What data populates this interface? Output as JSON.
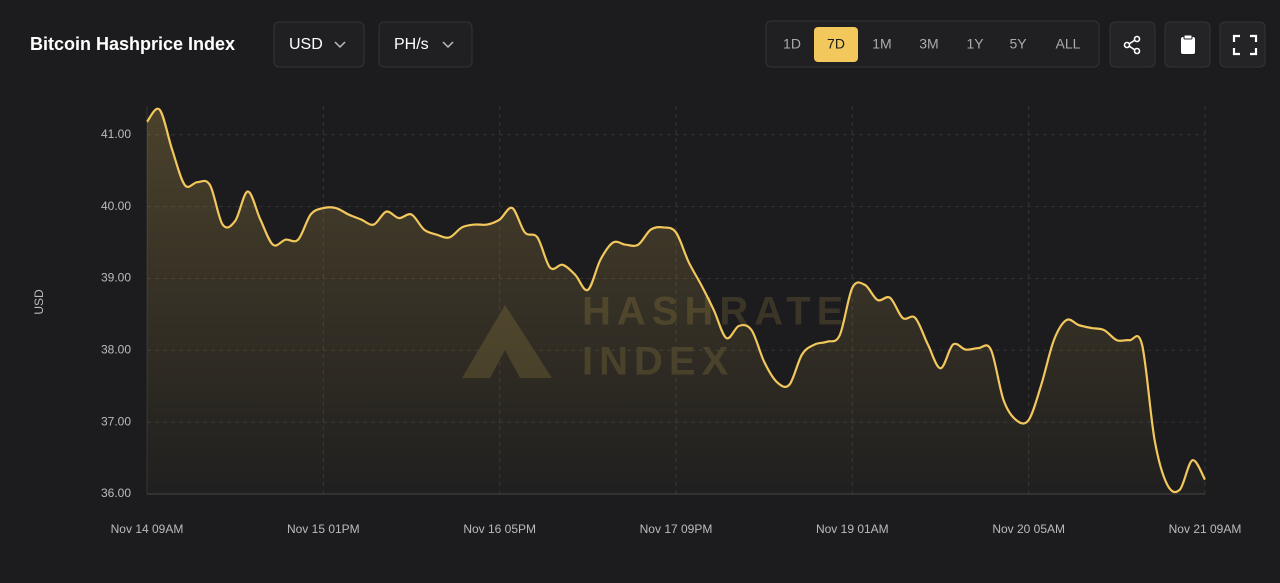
{
  "header": {
    "title": "Bitcoin Hashprice Index",
    "dropdowns": [
      "USD",
      "PH/s"
    ],
    "ranges": [
      "1D",
      "7D",
      "1M",
      "3M",
      "1Y",
      "5Y",
      "ALL"
    ],
    "active_range": "7D"
  },
  "chart_data": {
    "type": "line",
    "y_label": "USD",
    "watermark": [
      "HASHRATE",
      "INDEX"
    ],
    "color": "#f2c75c",
    "grid": true,
    "categories": [
      "Nov 14 09AM",
      null,
      null,
      null,
      null,
      null,
      null,
      null,
      null,
      null,
      null,
      null,
      null,
      null,
      "Nov 15 01PM",
      null,
      null,
      null,
      null,
      null,
      null,
      null,
      null,
      null,
      null,
      null,
      null,
      null,
      "Nov 16 05PM",
      null,
      null,
      null,
      null,
      null,
      null,
      null,
      null,
      null,
      null,
      null,
      null,
      null,
      "Nov 17 09PM",
      null,
      null,
      null,
      null,
      null,
      null,
      null,
      null,
      null,
      null,
      null,
      null,
      null,
      "Nov 19 01AM",
      null,
      null,
      null,
      null,
      null,
      null,
      null,
      null,
      null,
      null,
      null,
      null,
      null,
      "Nov 20 05AM",
      null,
      null,
      null,
      null,
      null,
      null,
      null,
      null,
      null,
      null,
      null,
      null,
      null,
      "Nov 21 09AM"
    ],
    "values": [
      41.18,
      41.35,
      40.79,
      40.3,
      40.34,
      40.3,
      39.75,
      39.8,
      40.21,
      39.82,
      39.47,
      39.54,
      39.54,
      39.89,
      39.98,
      39.98,
      39.89,
      39.82,
      39.75,
      39.93,
      39.84,
      39.89,
      39.68,
      39.61,
      39.57,
      39.71,
      39.75,
      39.75,
      39.82,
      39.98,
      39.64,
      39.57,
      39.15,
      39.19,
      39.05,
      38.84,
      39.26,
      39.5,
      39.47,
      39.47,
      39.68,
      39.71,
      39.64,
      39.23,
      38.91,
      38.56,
      38.17,
      38.34,
      38.28,
      37.84,
      37.56,
      37.52,
      37.94,
      38.08,
      38.12,
      38.21,
      38.87,
      38.91,
      38.7,
      38.73,
      38.45,
      38.45,
      38.08,
      37.75,
      38.08,
      38.01,
      38.03,
      38.01,
      37.31,
      37.03,
      37.03,
      37.52,
      38.14,
      38.42,
      38.35,
      38.31,
      38.28,
      38.14,
      38.14,
      38.08,
      36.75,
      36.13,
      36.06,
      36.47,
      36.2
    ],
    "ylim": [
      36,
      41.4
    ],
    "yticks": [
      {
        "value": 36,
        "label": "36.00"
      },
      {
        "value": 37,
        "label": "37.00"
      },
      {
        "value": 38,
        "label": "38.00"
      },
      {
        "value": 39,
        "label": "39.00"
      },
      {
        "value": 40,
        "label": "40.00"
      },
      {
        "value": 41,
        "label": "41.00"
      }
    ]
  }
}
